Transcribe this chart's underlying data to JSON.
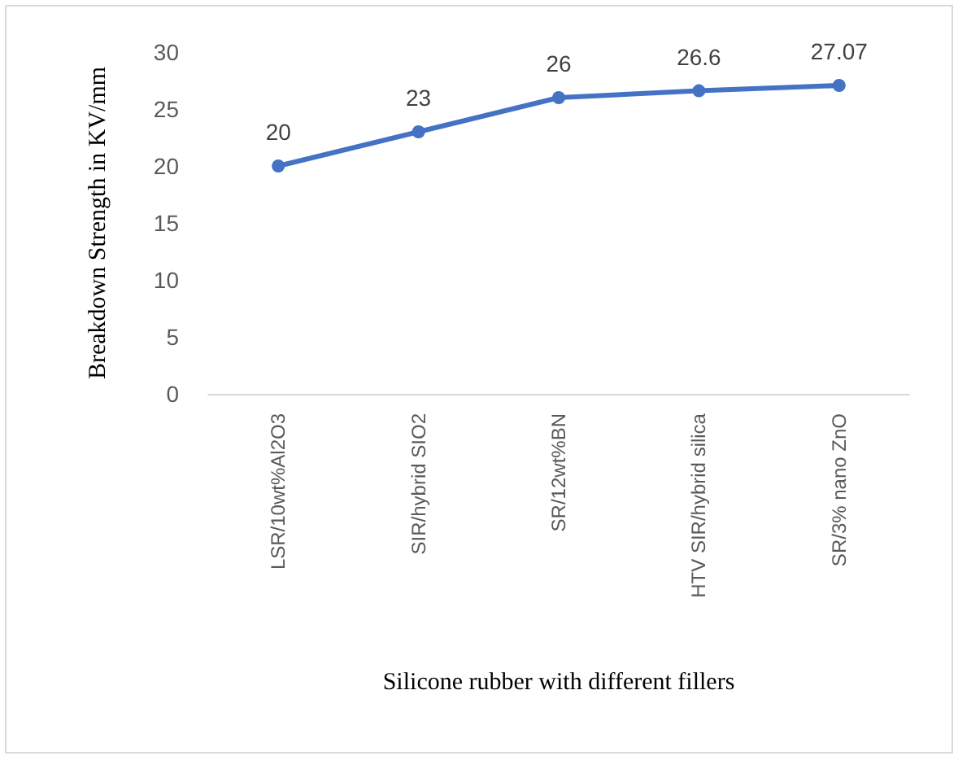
{
  "chart_data": {
    "type": "line",
    "xlabel": "Silicone rubber with different fillers",
    "ylabel": "Breakdown Strength in KV/mm",
    "categories": [
      "LSR/10wt%Al2O3",
      "SIR/hybrid SIO2",
      "SR/12wt%BN",
      "HTV SIR/hybrid silica",
      "SR/3% nano ZnO"
    ],
    "values": [
      20,
      23,
      26,
      26.6,
      27.07
    ],
    "color": "#4472c4",
    "ylim": [
      0,
      30
    ],
    "yticks": [
      0,
      5,
      10,
      15,
      20,
      25,
      30
    ],
    "grid": false,
    "marker": "circle",
    "line_style": "solid",
    "data_labels": true
  }
}
